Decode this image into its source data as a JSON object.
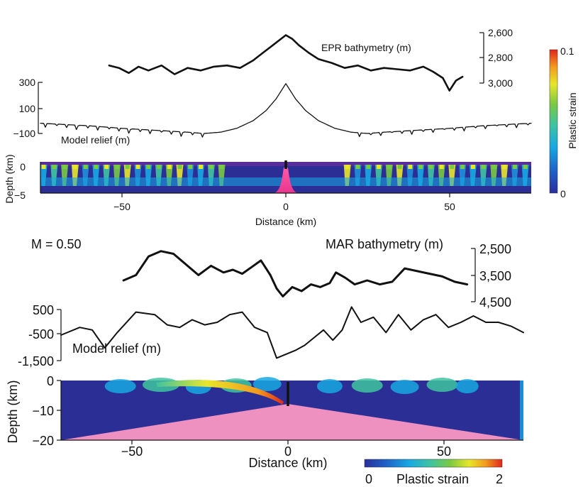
{
  "chart_data": [
    {
      "type": "line",
      "panel": "top",
      "series": [
        {
          "name": "EPR bathymetry (m)"
        },
        {
          "name": "Model relief (m)"
        }
      ],
      "bathy_axis": {
        "ticks": [
          "2,600",
          "2,800",
          "3,000"
        ],
        "values": [
          2600,
          2800,
          3000
        ],
        "range": [
          2600,
          3050
        ]
      },
      "relief_axis": {
        "ticks": [
          "300",
          "100",
          "−100"
        ],
        "values": [
          300,
          100,
          -100
        ],
        "range": [
          -140,
          420
        ]
      },
      "xaxis": {
        "ticks": [
          "−50",
          "0",
          "50"
        ],
        "values": [
          -50,
          0,
          50
        ],
        "range": [
          -75,
          75
        ],
        "label": "Distance (km)"
      },
      "depth_axis": {
        "label": "Depth (km)",
        "ticks": [
          "0",
          "−5"
        ],
        "values": [
          0,
          -5
        ],
        "range": [
          -5,
          0.5
        ]
      },
      "colorbar": {
        "label": "Plastic strain",
        "min_label": "0",
        "max_label": "0.1",
        "min": 0,
        "max": 0.1,
        "placement": "right"
      },
      "bathymetry": {
        "x": [
          -54,
          -51,
          -48,
          -45,
          -42,
          -38,
          -34,
          -30,
          -26,
          -22,
          -18,
          -14,
          -10,
          -7,
          -4,
          -2,
          0,
          2,
          4,
          7,
          10,
          14,
          18,
          22,
          26,
          30,
          34,
          38,
          42,
          45,
          48,
          50,
          52,
          54
        ],
        "y": [
          2860,
          2880,
          2920,
          2870,
          2900,
          2860,
          2930,
          2880,
          2900,
          2870,
          2860,
          2880,
          2820,
          2760,
          2700,
          2660,
          2620,
          2650,
          2700,
          2760,
          2810,
          2840,
          2880,
          2860,
          2900,
          2880,
          2890,
          2900,
          2870,
          2910,
          2960,
          3060,
          2980,
          2950
        ]
      },
      "model_relief": {
        "x": [
          -75,
          -60,
          -50,
          -40,
          -30,
          -25,
          -20,
          -15,
          -10,
          -6,
          -3,
          -1,
          0,
          1,
          3,
          6,
          10,
          15,
          20,
          25,
          30,
          40,
          50,
          60,
          75
        ],
        "y": [
          -20,
          -40,
          -60,
          -75,
          -90,
          -100,
          -90,
          -60,
          0,
          80,
          170,
          250,
          290,
          250,
          170,
          80,
          0,
          -60,
          -90,
          -100,
          -90,
          -75,
          -60,
          -40,
          -20
        ]
      }
    },
    {
      "type": "line",
      "panel": "bottom",
      "annotation": "M = 0.50",
      "series": [
        {
          "name": "MAR bathymetry (m)"
        },
        {
          "name": "Model relief (m)"
        }
      ],
      "bathy_axis": {
        "ticks": [
          "2,500",
          "3,500",
          "4,500"
        ],
        "values": [
          2500,
          3500,
          4500
        ],
        "range": [
          2500,
          4500
        ]
      },
      "relief_axis": {
        "ticks": [
          "500",
          "-500",
          "-1,500"
        ],
        "values": [
          500,
          -500,
          -1500
        ],
        "range": [
          -1500,
          700
        ]
      },
      "xaxis": {
        "ticks": [
          "−50",
          "0",
          "50"
        ],
        "values": [
          -50,
          0,
          50
        ],
        "range": [
          -74,
          74
        ],
        "label": "Distance (km)"
      },
      "depth_axis": {
        "label": "Depth (km)",
        "ticks": [
          "0",
          "−10",
          "−20"
        ],
        "values": [
          0,
          -10,
          -20
        ],
        "range": [
          -20,
          0
        ]
      },
      "colorbar": {
        "label": "Plastic strain",
        "min_label": "0",
        "max_label": "2",
        "min": 0,
        "max": 2,
        "placement": "bottom-right"
      },
      "bathymetry": {
        "x": [
          -54,
          -50,
          -46,
          -42,
          -38,
          -34,
          -30,
          -26,
          -22,
          -19,
          -16,
          -13,
          -10,
          -7,
          -5,
          -3,
          0,
          3,
          6,
          9,
          12,
          14,
          17,
          20,
          24,
          28,
          32,
          36,
          40,
          44,
          48,
          52,
          56
        ],
        "y": [
          3700,
          3500,
          2800,
          2600,
          2700,
          3100,
          3500,
          3150,
          3400,
          3300,
          3450,
          3200,
          2950,
          3500,
          4000,
          4300,
          3950,
          4100,
          3850,
          3950,
          3800,
          3400,
          3600,
          3850,
          3700,
          3850,
          3750,
          3250,
          3350,
          3450,
          3550,
          3750,
          3850
        ]
      },
      "model_relief": {
        "x": [
          -74,
          -68,
          -64,
          -60,
          -56,
          -50,
          -44,
          -40,
          -36,
          -32,
          -28,
          -24,
          -20,
          -16,
          -12,
          -8,
          -5,
          -3,
          -1,
          1,
          4,
          7,
          10,
          13,
          16,
          19,
          22,
          26,
          30,
          34,
          38,
          42,
          46,
          50,
          54,
          58,
          62,
          66,
          70,
          74
        ],
        "y": [
          -500,
          -200,
          -300,
          -1000,
          -400,
          400,
          300,
          -100,
          -200,
          100,
          -100,
          0,
          300,
          400,
          -200,
          -400,
          -1400,
          -1300,
          -1200,
          -1100,
          -900,
          -600,
          -300,
          -700,
          -300,
          600,
          0,
          200,
          -400,
          300,
          -300,
          100,
          300,
          -200,
          0,
          250,
          0,
          0,
          -150,
          -400
        ]
      }
    }
  ]
}
